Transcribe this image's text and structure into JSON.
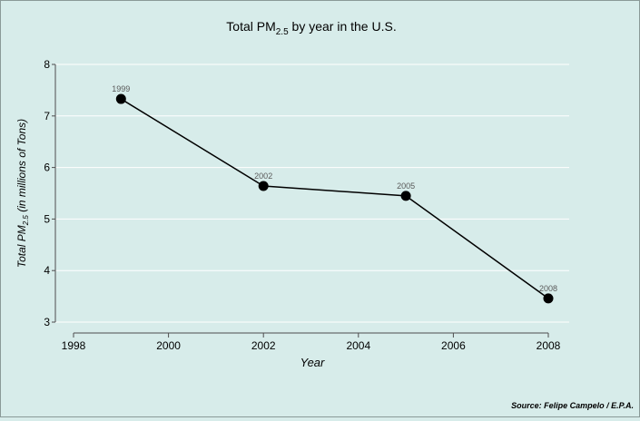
{
  "chart_data": {
    "type": "line",
    "title": "Total PM₂.₅ by year in the U.S.",
    "title_parts": {
      "prefix": "Total PM",
      "subscript": "2.5",
      "suffix": " by year in the U.S."
    },
    "xlabel": "Year",
    "ylabel_parts": {
      "prefix": "Total PM",
      "subscript": "2.5",
      "suffix": " (in millions of Tons)"
    },
    "caption": "Source: Felipe Campelo / E.P.A.",
    "x": [
      1999,
      2002,
      2005,
      2008
    ],
    "series": [
      {
        "values": [
          7.33,
          5.64,
          5.45,
          3.46
        ],
        "point_labels": [
          "1999",
          "2002",
          "2005",
          "2008"
        ]
      }
    ],
    "xlim": [
      1998,
      2008
    ],
    "ylim": [
      3,
      8
    ],
    "x_ticks": [
      "1998",
      "2000",
      "2002",
      "2004",
      "2006",
      "2008"
    ],
    "y_ticks": [
      "3",
      "4",
      "5",
      "6",
      "7",
      "8"
    ],
    "grid": "horizontal",
    "legend": "none",
    "colors": {
      "background": "#d7ecea",
      "gridline": "#ffffff",
      "line": "#000000",
      "axis": "#4d4d4d",
      "point_label": "#5a5a5a"
    }
  }
}
